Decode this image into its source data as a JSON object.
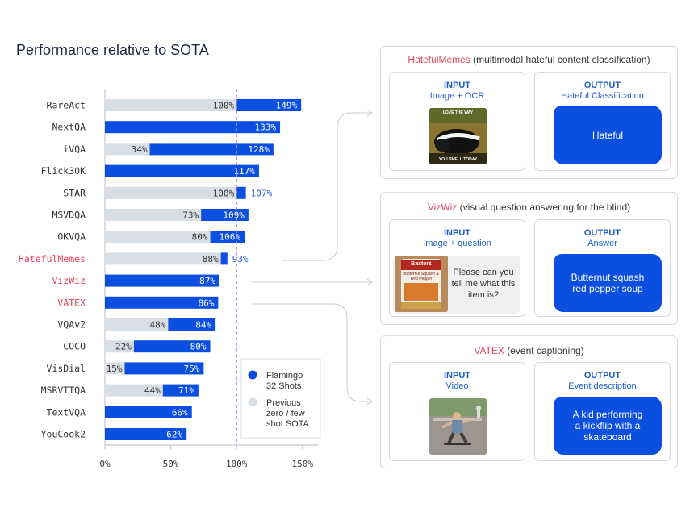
{
  "title": "Performance relative to SOTA",
  "chart_data": {
    "type": "bar",
    "orientation": "horizontal",
    "title": "Performance relative to SOTA",
    "categories": [
      "RareAct",
      "NextQA",
      "iVQA",
      "Flick30K",
      "STAR",
      "MSVDQA",
      "OKVQA",
      "HatefulMemes",
      "VizWiz",
      "VATEX",
      "VQAv2",
      "COCO",
      "VisDial",
      "MSRVTTQA",
      "TextVQA",
      "YouCook2"
    ],
    "highlighted_categories": [
      "HatefulMemes",
      "VizWiz",
      "VATEX"
    ],
    "series": [
      {
        "name": "Flamingo 32 Shots",
        "color": "#0b4fe0",
        "values": [
          149,
          133,
          128,
          117,
          107,
          109,
          106,
          93,
          87,
          86,
          84,
          80,
          75,
          71,
          66,
          62
        ],
        "labels": [
          "149%",
          "133%",
          "128%",
          "117%",
          "107%",
          "109%",
          "106%",
          "93%",
          "87%",
          "86%",
          "84%",
          "80%",
          "75%",
          "71%",
          "66%",
          "62%"
        ]
      },
      {
        "name": "Previous zero / few shot SOTA",
        "color": "#d9dde4",
        "values": [
          100,
          null,
          34,
          null,
          100,
          73,
          80,
          88,
          null,
          null,
          48,
          22,
          15,
          44,
          null,
          null
        ],
        "labels": [
          "100%",
          null,
          "34%",
          null,
          "100%",
          "73%",
          "80%",
          "88%",
          null,
          null,
          "48%",
          "22%",
          "15%",
          "44%",
          null,
          null
        ]
      }
    ],
    "xlim": [
      0,
      160
    ],
    "xticks": [
      0,
      50,
      100,
      150
    ],
    "xtick_labels": [
      "0%",
      "50%",
      "100%",
      "150%"
    ],
    "reference_line": 100,
    "legend": {
      "position": "bottom-right",
      "items": [
        {
          "label_lines": [
            "Flamingo",
            "32 Shots"
          ],
          "color": "#0b4fe0"
        },
        {
          "label_lines": [
            "Previous",
            "zero / few",
            "shot SOTA"
          ],
          "color": "#d9dde4"
        }
      ]
    }
  },
  "panels": {
    "hateful": {
      "name": "HatefulMemes",
      "desc": "(multimodal hateful content classification)",
      "input_title": "INPUT",
      "input_sub": "Image + OCR",
      "meme_top": "LOVE THE WAY",
      "meme_bottom": "YOU SMELL TODAY",
      "output_title": "OUTPUT",
      "output_sub": "Hateful Classification",
      "output_text": "Hateful"
    },
    "vizwiz": {
      "name": "VizWiz",
      "desc": "(visual question answering for the blind)",
      "input_title": "INPUT",
      "input_sub": "Image + question",
      "can_brand": "Baxters",
      "can_text": "Butternut Squash & Red Pepper",
      "question": "Please can you tell me what this item is?",
      "output_title": "OUTPUT",
      "output_sub": "Answer",
      "output_text": "Butternut squash red pepper soup"
    },
    "vatex": {
      "name": "VATEX",
      "desc": "(event captioning)",
      "input_title": "INPUT",
      "input_sub": "Video",
      "output_title": "OUTPUT",
      "output_sub": "Event description",
      "output_text": "A kid performing a kickflip with a skateboard"
    }
  }
}
